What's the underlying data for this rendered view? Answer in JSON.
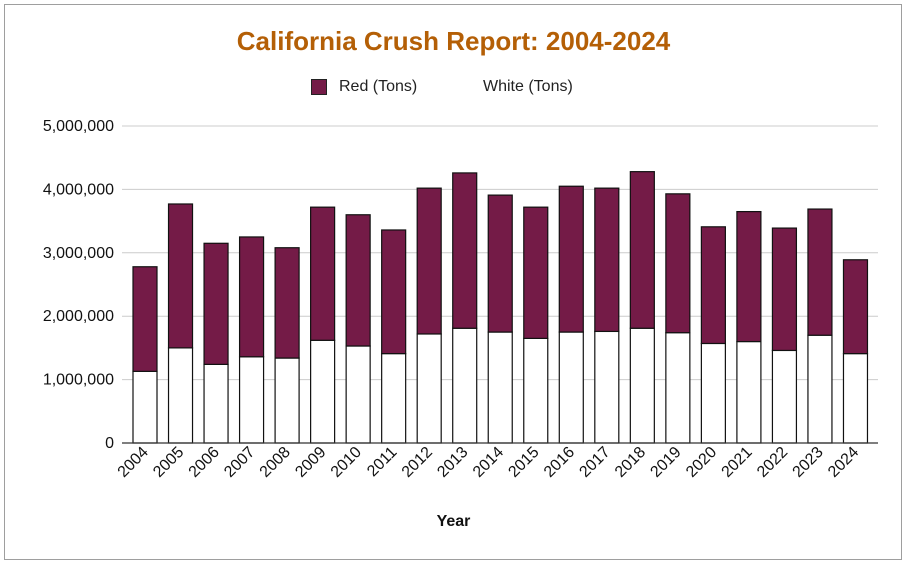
{
  "chart_data": {
    "type": "bar",
    "stacked": true,
    "title": "California Crush Report: 2004-2024",
    "xlabel": "Year",
    "ylabel": "",
    "ylim": [
      0,
      5000000
    ],
    "yticks": [
      "0",
      "1,000,000",
      "2,000,000",
      "3,000,000",
      "4,000,000",
      "5,000,000"
    ],
    "grid": true,
    "legend_position": "top",
    "categories": [
      "2004",
      "2005",
      "2006",
      "2007",
      "2008",
      "2009",
      "2010",
      "2011",
      "2012",
      "2013",
      "2014",
      "2015",
      "2016",
      "2017",
      "2018",
      "2019",
      "2020",
      "2021",
      "2022",
      "2023",
      "2024"
    ],
    "series": [
      {
        "name": "White (Tons)",
        "color": "#ffffff",
        "values": [
          1130000,
          1500000,
          1240000,
          1360000,
          1340000,
          1620000,
          1530000,
          1410000,
          1720000,
          1810000,
          1750000,
          1650000,
          1750000,
          1760000,
          1810000,
          1740000,
          1570000,
          1600000,
          1460000,
          1700000,
          1410000
        ]
      },
      {
        "name": "Red (Tons)",
        "color": "#741b47",
        "values": [
          1650000,
          2270000,
          1910000,
          1890000,
          1740000,
          2100000,
          2070000,
          1950000,
          2300000,
          2450000,
          2160000,
          2070000,
          2300000,
          2260000,
          2470000,
          2190000,
          1840000,
          2050000,
          1930000,
          1990000,
          1480000
        ]
      }
    ]
  }
}
